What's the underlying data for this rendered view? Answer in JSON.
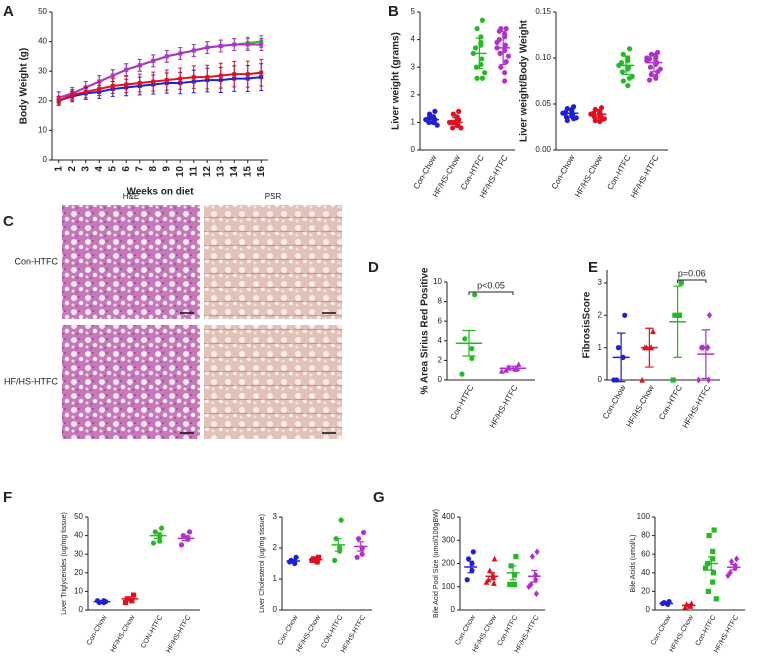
{
  "chart_data": [
    {
      "type": "line",
      "panel": "A",
      "ylabel": "Body Weight (g)",
      "xlabel": "Weeks on diet",
      "categories": [
        "1",
        "2",
        "3",
        "4",
        "5",
        "6",
        "7",
        "8",
        "9",
        "10",
        "11",
        "12",
        "13",
        "14",
        "15",
        "16"
      ],
      "ylim": [
        0,
        50
      ],
      "yticks": [
        0,
        10,
        20,
        30,
        40,
        50
      ],
      "series": [
        {
          "color": "#22bb22",
          "values": [
            21,
            22.5,
            24.5,
            26.5,
            28.5,
            30.5,
            32,
            33.5,
            35,
            36,
            37,
            38,
            38.5,
            39,
            39.5,
            40
          ],
          "errors": [
            2,
            2,
            2,
            2,
            2,
            2,
            2,
            2,
            2,
            2,
            2,
            2,
            2,
            2,
            2,
            2
          ]
        },
        {
          "color": "#b030d0",
          "values": [
            21,
            22.5,
            24.5,
            26.5,
            28.5,
            30.5,
            32,
            33.5,
            35,
            36,
            37,
            38,
            38.5,
            39,
            39,
            39
          ],
          "errors": [
            2,
            2,
            2,
            2,
            2,
            2,
            2,
            2,
            2,
            2,
            2,
            2,
            2,
            2,
            2,
            2
          ]
        },
        {
          "color": "#1f1fd4",
          "values": [
            20,
            21.5,
            22.5,
            23,
            24,
            24.5,
            25,
            25.5,
            26,
            26,
            26.5,
            27,
            27,
            27.5,
            27.5,
            28
          ],
          "errors": [
            1.5,
            1.8,
            2,
            2.2,
            2.5,
            2.8,
            3,
            3.2,
            3.4,
            3.6,
            3.8,
            4,
            4.2,
            4.3,
            4.4,
            4.5
          ]
        },
        {
          "color": "#e01020",
          "values": [
            20,
            22,
            23,
            24,
            25,
            25.5,
            26,
            26.5,
            27,
            27.5,
            28,
            28,
            28.5,
            29,
            29,
            29.5
          ],
          "errors": [
            1.5,
            1.8,
            2,
            2.2,
            2.5,
            2.8,
            3,
            3.2,
            3.4,
            3.6,
            3.8,
            4,
            4.2,
            4.3,
            4.4,
            4.5
          ]
        }
      ]
    },
    {
      "type": "dot",
      "panel": "B",
      "ylabel": "Liver weight (grams)",
      "ylim": [
        0,
        5
      ],
      "yticks": [
        0,
        1,
        2,
        3,
        4,
        5
      ],
      "groups": [
        {
          "label": "Con-Chow",
          "color": "#1f1fd4",
          "marker": "circle",
          "points": [
            1.4,
            1.3,
            1.2,
            1.2,
            1.1,
            1.1,
            1.0,
            1.0,
            1.0,
            0.9,
            1.1,
            1.2
          ],
          "mean": 1.1,
          "error": 0.15
        },
        {
          "label": "HF/HS-Chow",
          "color": "#e01020",
          "marker": "circle",
          "points": [
            1.4,
            1.3,
            1.2,
            1.1,
            1.0,
            1.0,
            0.9,
            0.9,
            0.8,
            0.8,
            1.1,
            1.0,
            0.9
          ],
          "mean": 1.0,
          "error": 0.17
        },
        {
          "label": "Con-HTFC",
          "color": "#22bb22",
          "marker": "circle",
          "points": [
            4.7,
            4.4,
            4.1,
            3.8,
            3.7,
            3.5,
            3.3,
            3.1,
            3.0,
            2.8,
            2.6,
            2.6,
            3.9
          ],
          "mean": 3.5,
          "error": 0.55
        },
        {
          "label": "HF/HS-HTFC",
          "color": "#b030d0",
          "marker": "circle",
          "points": [
            4.4,
            4.4,
            4.2,
            4.1,
            4.0,
            3.9,
            3.8,
            3.6,
            3.5,
            3.4,
            3.2,
            3.0,
            2.8,
            2.5,
            4.3,
            3.7
          ],
          "mean": 3.7,
          "error": 0.6
        }
      ]
    },
    {
      "type": "dot",
      "ylabel": "Liver weight/Body Weight",
      "ylim": [
        0,
        0.15
      ],
      "yticks": [
        {
          "value": 0,
          "label": "0.00"
        },
        0.05,
        {
          "value": 0.1,
          "label": "0.10"
        },
        0.15
      ],
      "groups": [
        {
          "label": "Con-Chow",
          "color": "#1f1fd4",
          "marker": "circle",
          "points": [
            0.047,
            0.045,
            0.044,
            0.042,
            0.041,
            0.04,
            0.039,
            0.038,
            0.036,
            0.035,
            0.034,
            0.032
          ],
          "mean": 0.04,
          "error": 0.005
        },
        {
          "label": "HF/HS-Chow",
          "color": "#e01020",
          "marker": "circle",
          "points": [
            0.046,
            0.044,
            0.042,
            0.041,
            0.04,
            0.039,
            0.038,
            0.037,
            0.036,
            0.034,
            0.033,
            0.032,
            0.031
          ],
          "mean": 0.039,
          "error": 0.005
        },
        {
          "label": "Con-HTFC",
          "color": "#22bb22",
          "marker": "circle",
          "points": [
            0.11,
            0.104,
            0.1,
            0.097,
            0.095,
            0.092,
            0.09,
            0.088,
            0.085,
            0.08,
            0.078,
            0.075,
            0.07
          ],
          "mean": 0.092,
          "error": 0.01
        },
        {
          "label": "HF/HS-HTFC",
          "color": "#b030d0",
          "marker": "circle",
          "points": [
            0.106,
            0.104,
            0.102,
            0.1,
            0.099,
            0.097,
            0.095,
            0.093,
            0.09,
            0.088,
            0.085,
            0.082,
            0.08,
            0.078,
            0.076,
            0.1
          ],
          "mean": 0.095,
          "error": 0.01
        }
      ]
    },
    {
      "type": "image",
      "panel": "C",
      "column_labels": [
        "H&E",
        "PSR"
      ],
      "row_labels": [
        "Con-HTFC",
        "HF/HS-HTFC"
      ]
    },
    {
      "type": "dot",
      "panel": "D",
      "ylabel": "% Area Sirius Red Positive",
      "ylim": [
        0,
        10
      ],
      "yticks": [
        0,
        2,
        4,
        6,
        8,
        10
      ],
      "annotation": "p<0.05",
      "groups": [
        {
          "label": "Con-HTFC",
          "color": "#22bb22",
          "marker": "circle",
          "points": [
            8.7,
            4.2,
            3.2,
            2.2,
            0.6
          ],
          "mean": 3.75,
          "error": 1.3
        },
        {
          "label": "HF/HS-HTFC",
          "color": "#b030d0",
          "marker": "triangle",
          "points": [
            1.6,
            1.3,
            1.2,
            1.1,
            1.0,
            0.9,
            1.2
          ],
          "mean": 1.2,
          "error": 0.2
        }
      ]
    },
    {
      "type": "dot",
      "panel": "E",
      "ylabel": "FibrosisScore",
      "ylim": [
        0,
        3.4
      ],
      "yticks": [
        0,
        1,
        2,
        3
      ],
      "annotation": "p=0.06",
      "groups": [
        {
          "label": "Con-Chow",
          "color": "#1f1fd4",
          "marker": "circle",
          "points": [
            2,
            1,
            0.7,
            0.7,
            0,
            0
          ],
          "mean": 0.7,
          "error": 0.75
        },
        {
          "label": "HF/HS-Chow",
          "color": "#e01020",
          "marker": "triangle",
          "points": [
            1.5,
            1,
            1,
            1,
            1,
            0
          ],
          "mean": 1.0,
          "error": 0.6
        },
        {
          "label": "Con-HTFC",
          "color": "#22bb22",
          "marker": "square",
          "points": [
            3,
            2,
            2,
            2,
            0
          ],
          "mean": 1.8,
          "error": 1.1
        },
        {
          "label": "HF/HS-HTFC",
          "color": "#b030d0",
          "marker": "diamond",
          "points": [
            2,
            1,
            1,
            1,
            1,
            0,
            0
          ],
          "mean": 0.8,
          "error": 0.75
        }
      ]
    },
    {
      "type": "dot",
      "panel": "F",
      "ylabel": "Liver Triglycerides (ug/mg tissue)",
      "ylim": [
        0,
        50
      ],
      "yticks": [
        0,
        10,
        20,
        30,
        40,
        50
      ],
      "groups": [
        {
          "label": "Con-Chow",
          "color": "#1f1fd4",
          "marker": "circle",
          "points": [
            4.5,
            4,
            4,
            5,
            5
          ],
          "mean": 4.5,
          "error": 0.5
        },
        {
          "label": "HF/HS-Chow",
          "color": "#e01020",
          "marker": "square",
          "points": [
            8,
            6,
            5,
            5,
            4
          ],
          "mean": 6,
          "error": 1
        },
        {
          "label": "CON-HTFC",
          "color": "#22bb22",
          "marker": "circle",
          "points": [
            44,
            42,
            40,
            37,
            36
          ],
          "mean": 40,
          "error": 1.5
        },
        {
          "label": "HF/HS-HTFC",
          "color": "#b030d0",
          "marker": "circle",
          "points": [
            42,
            40,
            39,
            38,
            35
          ],
          "mean": 38.5,
          "error": 1.2
        }
      ]
    },
    {
      "type": "dot",
      "ylabel": "Liver Cholesterol (ug/mg tissue)",
      "ylim": [
        0,
        3
      ],
      "yticks": [
        0,
        1,
        2,
        3
      ],
      "groups": [
        {
          "label": "Con-Chow",
          "color": "#1f1fd4",
          "marker": "circle",
          "points": [
            1.7,
            1.6,
            1.55,
            1.5,
            1.55
          ],
          "mean": 1.58,
          "error": 0.05
        },
        {
          "label": "HF/HS-Chow",
          "color": "#e01020",
          "marker": "square",
          "points": [
            1.7,
            1.65,
            1.6,
            1.55,
            1.6
          ],
          "mean": 1.62,
          "error": 0.05
        },
        {
          "label": "CON-HTFC",
          "color": "#22bb22",
          "marker": "circle",
          "points": [
            2.9,
            2.3,
            2.0,
            1.9,
            1.6
          ],
          "mean": 2.1,
          "error": 0.2
        },
        {
          "label": "HF/HS-HTFC",
          "color": "#b030d0",
          "marker": "circle",
          "points": [
            2.5,
            2.3,
            2.0,
            1.8,
            1.7
          ],
          "mean": 2.05,
          "error": 0.15
        }
      ]
    },
    {
      "type": "dot",
      "panel": "G",
      "ylabel": "Bile Acid Pool Size (umol/100gBW)",
      "ylim": [
        0,
        400
      ],
      "yticks": [
        0,
        100,
        200,
        300,
        400
      ],
      "groups": [
        {
          "label": "Con-Chow",
          "color": "#1f1fd4",
          "marker": "circle",
          "points": [
            250,
            220,
            200,
            170,
            130
          ],
          "mean": 185,
          "error": 25
        },
        {
          "label": "HF/HS-Chow",
          "color": "#e01020",
          "marker": "triangle",
          "points": [
            220,
            170,
            150,
            140,
            130,
            120,
            115
          ],
          "mean": 145,
          "error": 15
        },
        {
          "label": "Con-HTFC",
          "color": "#22bb22",
          "marker": "square",
          "points": [
            230,
            190,
            150,
            110,
            110
          ],
          "mean": 160,
          "error": 30
        },
        {
          "label": "HF/HS-HTFC",
          "color": "#b030d0",
          "marker": "diamond",
          "points": [
            250,
            230,
            150,
            130,
            110,
            100,
            70
          ],
          "mean": 145,
          "error": 25
        }
      ]
    },
    {
      "type": "dot",
      "ylabel": "Bile Acids (umol/L)",
      "ylim": [
        0,
        100
      ],
      "yticks": [
        0,
        20,
        40,
        60,
        80,
        100
      ],
      "groups": [
        {
          "label": "Con-Chow",
          "color": "#1f1fd4",
          "marker": "circle",
          "points": [
            9,
            8,
            7,
            6,
            7
          ],
          "mean": 7,
          "error": 0.7
        },
        {
          "label": "HF/HS-Chow",
          "color": "#e01020",
          "marker": "triangle",
          "points": [
            7,
            6,
            5,
            4,
            3
          ],
          "mean": 5,
          "error": 0.8
        },
        {
          "label": "Con-HTFC",
          "color": "#22bb22",
          "marker": "square",
          "points": [
            86,
            80,
            63,
            55,
            50,
            45,
            40,
            30,
            20,
            12
          ],
          "mean": 50,
          "error": 7
        },
        {
          "label": "HF/HS-HTFC",
          "color": "#b030d0",
          "marker": "diamond",
          "points": [
            55,
            52,
            48,
            45,
            40,
            37
          ],
          "mean": 46,
          "error": 3
        }
      ]
    }
  ]
}
